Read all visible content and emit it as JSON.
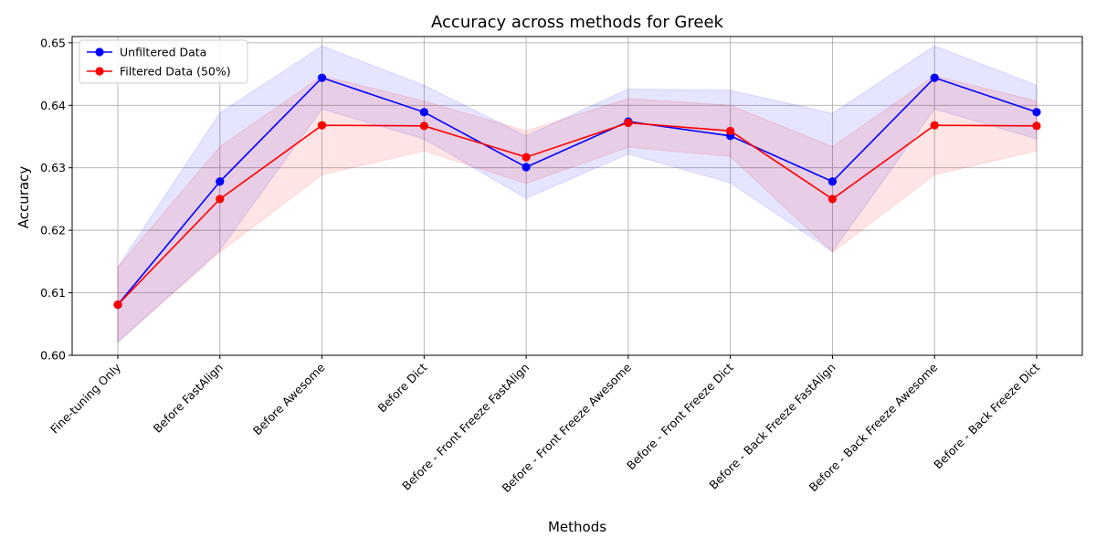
{
  "chart_data": {
    "type": "line",
    "title": "Accuracy across methods for Greek",
    "xlabel": "Methods",
    "ylabel": "Accuracy",
    "ylim": [
      0.6,
      0.651
    ],
    "yticks": [
      "0.60",
      "0.61",
      "0.62",
      "0.63",
      "0.64",
      "0.65"
    ],
    "grid": true,
    "legend_position": "top-left",
    "categories": [
      "Fine-tuning Only",
      "Before FastAlign",
      "Before Awesome",
      "Before Dict",
      "Before - Front Freeze FastAlign",
      "Before - Front Freeze Awesome",
      "Before - Front Freeze Dict",
      "Before - Back Freeze FastAlign",
      "Before - Back Freeze Awesome",
      "Before - Back Freeze Dict"
    ],
    "series": [
      {
        "name": "Unfiltered Data",
        "color": "#0000ff",
        "band_color": "#0000ff",
        "values": [
          0.6081,
          0.6278,
          0.6444,
          0.6389,
          0.6301,
          0.6374,
          0.6351,
          0.6278,
          0.6444,
          0.6389
        ],
        "lower": [
          0.6021,
          0.6168,
          0.6394,
          0.6346,
          0.6251,
          0.6322,
          0.6276,
          0.6166,
          0.6394,
          0.6346
        ],
        "upper": [
          0.6141,
          0.6388,
          0.6495,
          0.6432,
          0.6351,
          0.6426,
          0.6424,
          0.6387,
          0.6495,
          0.6432
        ]
      },
      {
        "name": "Filtered Data (50%)",
        "color": "#ff0000",
        "band_color": "#ff0000",
        "values": [
          0.6081,
          0.625,
          0.6368,
          0.6367,
          0.6317,
          0.6372,
          0.6359,
          0.625,
          0.6368,
          0.6367
        ],
        "lower": [
          0.6021,
          0.6165,
          0.6289,
          0.6327,
          0.6275,
          0.6333,
          0.6318,
          0.6165,
          0.6289,
          0.6327
        ],
        "upper": [
          0.6141,
          0.6334,
          0.6447,
          0.6407,
          0.6359,
          0.6411,
          0.64,
          0.6334,
          0.6447,
          0.6407
        ]
      }
    ]
  }
}
